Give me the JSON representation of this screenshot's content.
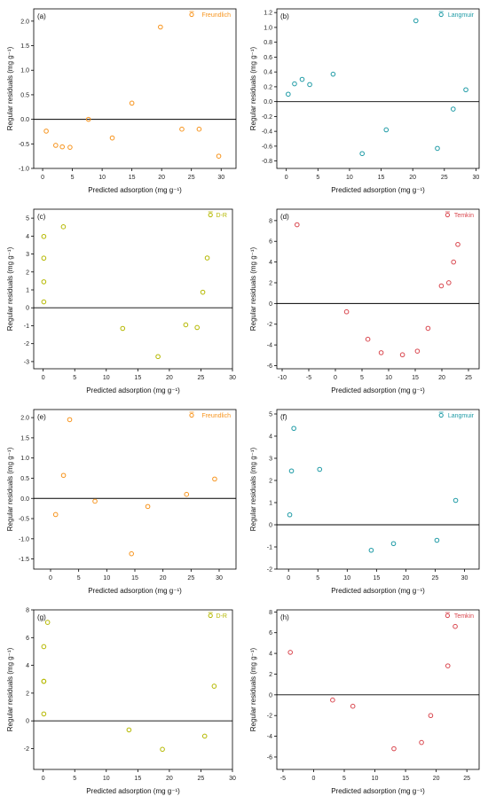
{
  "figure": {
    "panels": [
      {
        "label": "(a)",
        "legend": "Freundlich",
        "color": "#f7941d"
      },
      {
        "label": "(b)",
        "legend": "Langmuir",
        "color": "#1f9ba6"
      },
      {
        "label": "(c)",
        "legend": "D-R",
        "color": "#b5b800"
      },
      {
        "label": "(d)",
        "legend": "Temkin",
        "color": "#d9474f"
      },
      {
        "label": "(e)",
        "legend": "Freundlich",
        "color": "#f7941d"
      },
      {
        "label": "(f)",
        "legend": "Langmuir",
        "color": "#1f9ba6"
      },
      {
        "label": "(g)",
        "legend": "D-R",
        "color": "#b5b800"
      },
      {
        "label": "(h)",
        "legend": "Temkin",
        "color": "#d9474f"
      }
    ]
  },
  "chart_data": [
    {
      "type": "scatter",
      "title": "",
      "xlabel": "Predicted adsorption (mg g⁻¹)",
      "ylabel": "Regular residuals (mg g⁻¹)",
      "xlim": [
        -1.5,
        32.5
      ],
      "ylim": [
        -1.0,
        2.25
      ],
      "xticks": [
        0,
        5,
        10,
        15,
        20,
        25,
        30
      ],
      "yticks": [
        -1.0,
        -0.5,
        0.0,
        0.5,
        1.0,
        1.5,
        2.0
      ],
      "tick_decimals": 1,
      "series": [
        {
          "name": "Freundlich",
          "x": [
            0.6,
            2.2,
            3.3,
            4.6,
            7.7,
            11.7,
            15.0,
            19.8,
            23.4,
            26.3,
            29.6
          ],
          "y": [
            -0.24,
            -0.53,
            -0.56,
            -0.57,
            0.0,
            -0.38,
            0.33,
            1.88,
            -0.2,
            -0.2,
            -0.75
          ]
        }
      ],
      "legend_position": "top-right"
    },
    {
      "type": "scatter",
      "title": "",
      "xlabel": "Predicted adsorption (mg g⁻¹)",
      "ylabel": "Regular residuals (mg g⁻¹)",
      "xlim": [
        -1.5,
        30.5
      ],
      "ylim": [
        -0.9,
        1.25
      ],
      "xticks": [
        0,
        5,
        10,
        15,
        20,
        25,
        30
      ],
      "yticks": [
        -0.8,
        -0.6,
        -0.4,
        -0.2,
        0.0,
        0.2,
        0.4,
        0.6,
        0.8,
        1.0,
        1.2
      ],
      "tick_decimals": 1,
      "series": [
        {
          "name": "Langmuir",
          "x": [
            0.3,
            1.3,
            2.5,
            3.7,
            7.4,
            12.0,
            15.8,
            20.5,
            23.9,
            26.4,
            28.4
          ],
          "y": [
            0.1,
            0.24,
            0.3,
            0.23,
            0.37,
            -0.7,
            -0.38,
            1.09,
            -0.63,
            -0.1,
            0.16
          ]
        }
      ],
      "legend_position": "top-right"
    },
    {
      "type": "scatter",
      "title": "",
      "xlabel": "Predicted adsorption (mg g⁻¹)",
      "ylabel": "Regular residuals (mg g⁻¹)",
      "xlim": [
        -1.5,
        30
      ],
      "ylim": [
        -3.4,
        5.5
      ],
      "xticks": [
        0,
        5,
        10,
        15,
        20,
        25,
        30
      ],
      "yticks": [
        -3,
        -2,
        -1,
        0,
        1,
        2,
        3,
        4,
        5
      ],
      "tick_decimals": 0,
      "series": [
        {
          "name": "D-R",
          "x": [
            0.1,
            0.1,
            0.1,
            0.1,
            3.2,
            12.6,
            18.2,
            22.6,
            24.4,
            25.3,
            26.0
          ],
          "y": [
            0.33,
            1.45,
            2.77,
            3.98,
            4.52,
            -1.15,
            -2.72,
            -0.95,
            -1.1,
            0.87,
            2.78
          ]
        }
      ],
      "legend_position": "top-right"
    },
    {
      "type": "scatter",
      "title": "",
      "xlabel": "Predicted adsorption (mg g⁻¹)",
      "ylabel": "Regular residuals (mg g⁻¹)",
      "xlim": [
        -11,
        27
      ],
      "ylim": [
        -6.3,
        9.1
      ],
      "xticks": [
        -10,
        -5,
        0,
        5,
        10,
        15,
        20,
        25
      ],
      "yticks": [
        -6,
        -4,
        -2,
        0,
        2,
        4,
        6,
        8
      ],
      "tick_decimals": 0,
      "series": [
        {
          "name": "Temkin",
          "x": [
            -7.2,
            2.1,
            6.1,
            8.6,
            12.6,
            15.4,
            17.4,
            19.9,
            21.3,
            22.2,
            23.0
          ],
          "y": [
            7.6,
            -0.8,
            -3.45,
            -4.75,
            -4.95,
            -4.6,
            -2.4,
            1.7,
            2.0,
            4.0,
            5.7
          ]
        }
      ],
      "legend_position": "top-right"
    },
    {
      "type": "scatter",
      "title": "",
      "xlabel": "Predicted adsorption (mg g⁻¹)",
      "ylabel": "Regular residuals (mg g⁻¹)",
      "xlim": [
        -3,
        33
      ],
      "ylim": [
        -1.75,
        2.2
      ],
      "xticks": [
        0,
        5,
        10,
        15,
        20,
        25,
        30
      ],
      "yticks": [
        -1.5,
        -1.0,
        -0.5,
        0.0,
        0.5,
        1.0,
        1.5,
        2.0
      ],
      "tick_decimals": 1,
      "series": [
        {
          "name": "Freundlich",
          "x": [
            0.9,
            2.3,
            3.4,
            7.9,
            14.4,
            17.3,
            24.2,
            29.2
          ],
          "y": [
            -0.4,
            0.57,
            1.95,
            -0.07,
            -1.37,
            -0.2,
            0.1,
            0.48
          ]
        }
      ],
      "legend_position": "top-right"
    },
    {
      "type": "scatter",
      "title": "",
      "xlabel": "Predicted adsorption (mg g⁻¹)",
      "ylabel": "Regular residuals (mg g⁻¹)",
      "xlim": [
        -2,
        32.5
      ],
      "ylim": [
        -2.0,
        5.2
      ],
      "xticks": [
        0,
        5,
        10,
        15,
        20,
        25,
        30
      ],
      "yticks": [
        -2,
        -1,
        0,
        1,
        2,
        3,
        4,
        5
      ],
      "tick_decimals": 0,
      "series": [
        {
          "name": "Langmuir",
          "x": [
            0.2,
            0.5,
            0.9,
            5.3,
            14.1,
            17.9,
            25.3,
            28.5
          ],
          "y": [
            0.45,
            2.43,
            4.35,
            2.5,
            -1.15,
            -0.85,
            -0.7,
            1.1
          ]
        }
      ],
      "legend_position": "top-right"
    },
    {
      "type": "scatter",
      "title": "",
      "xlabel": "Predicted adsorption (mg g⁻¹)",
      "ylabel": "Regular residuals (mg g⁻¹)",
      "xlim": [
        -1.5,
        30
      ],
      "ylim": [
        -3.5,
        8.0
      ],
      "xticks": [
        0,
        5,
        10,
        15,
        20,
        25,
        30
      ],
      "yticks": [
        -2,
        0,
        2,
        4,
        6,
        8
      ],
      "tick_decimals": 0,
      "series": [
        {
          "name": "D-R",
          "x": [
            0.1,
            0.1,
            0.1,
            0.1,
            0.7,
            13.6,
            18.9,
            25.6,
            27.1
          ],
          "y": [
            0.5,
            2.85,
            5.35,
            2.85,
            7.1,
            -0.65,
            -2.05,
            -1.1,
            2.5
          ]
        }
      ],
      "legend_position": "top-right"
    },
    {
      "type": "scatter",
      "title": "",
      "xlabel": "Predicted adsorption (mg g⁻¹)",
      "ylabel": "Regular residuals (mg g⁻¹)",
      "xlim": [
        -6,
        27
      ],
      "ylim": [
        -7.2,
        8.2
      ],
      "xticks": [
        -5,
        0,
        5,
        10,
        15,
        20,
        25
      ],
      "yticks": [
        -6,
        -4,
        -2,
        0,
        2,
        4,
        6,
        8
      ],
      "tick_decimals": 0,
      "series": [
        {
          "name": "Temkin",
          "x": [
            -3.8,
            3.1,
            6.4,
            13.1,
            17.6,
            19.1,
            21.9,
            23.1
          ],
          "y": [
            4.1,
            -0.5,
            -1.1,
            -5.2,
            -4.6,
            -2.0,
            2.8,
            6.6
          ]
        }
      ],
      "legend_position": "top-right"
    }
  ]
}
